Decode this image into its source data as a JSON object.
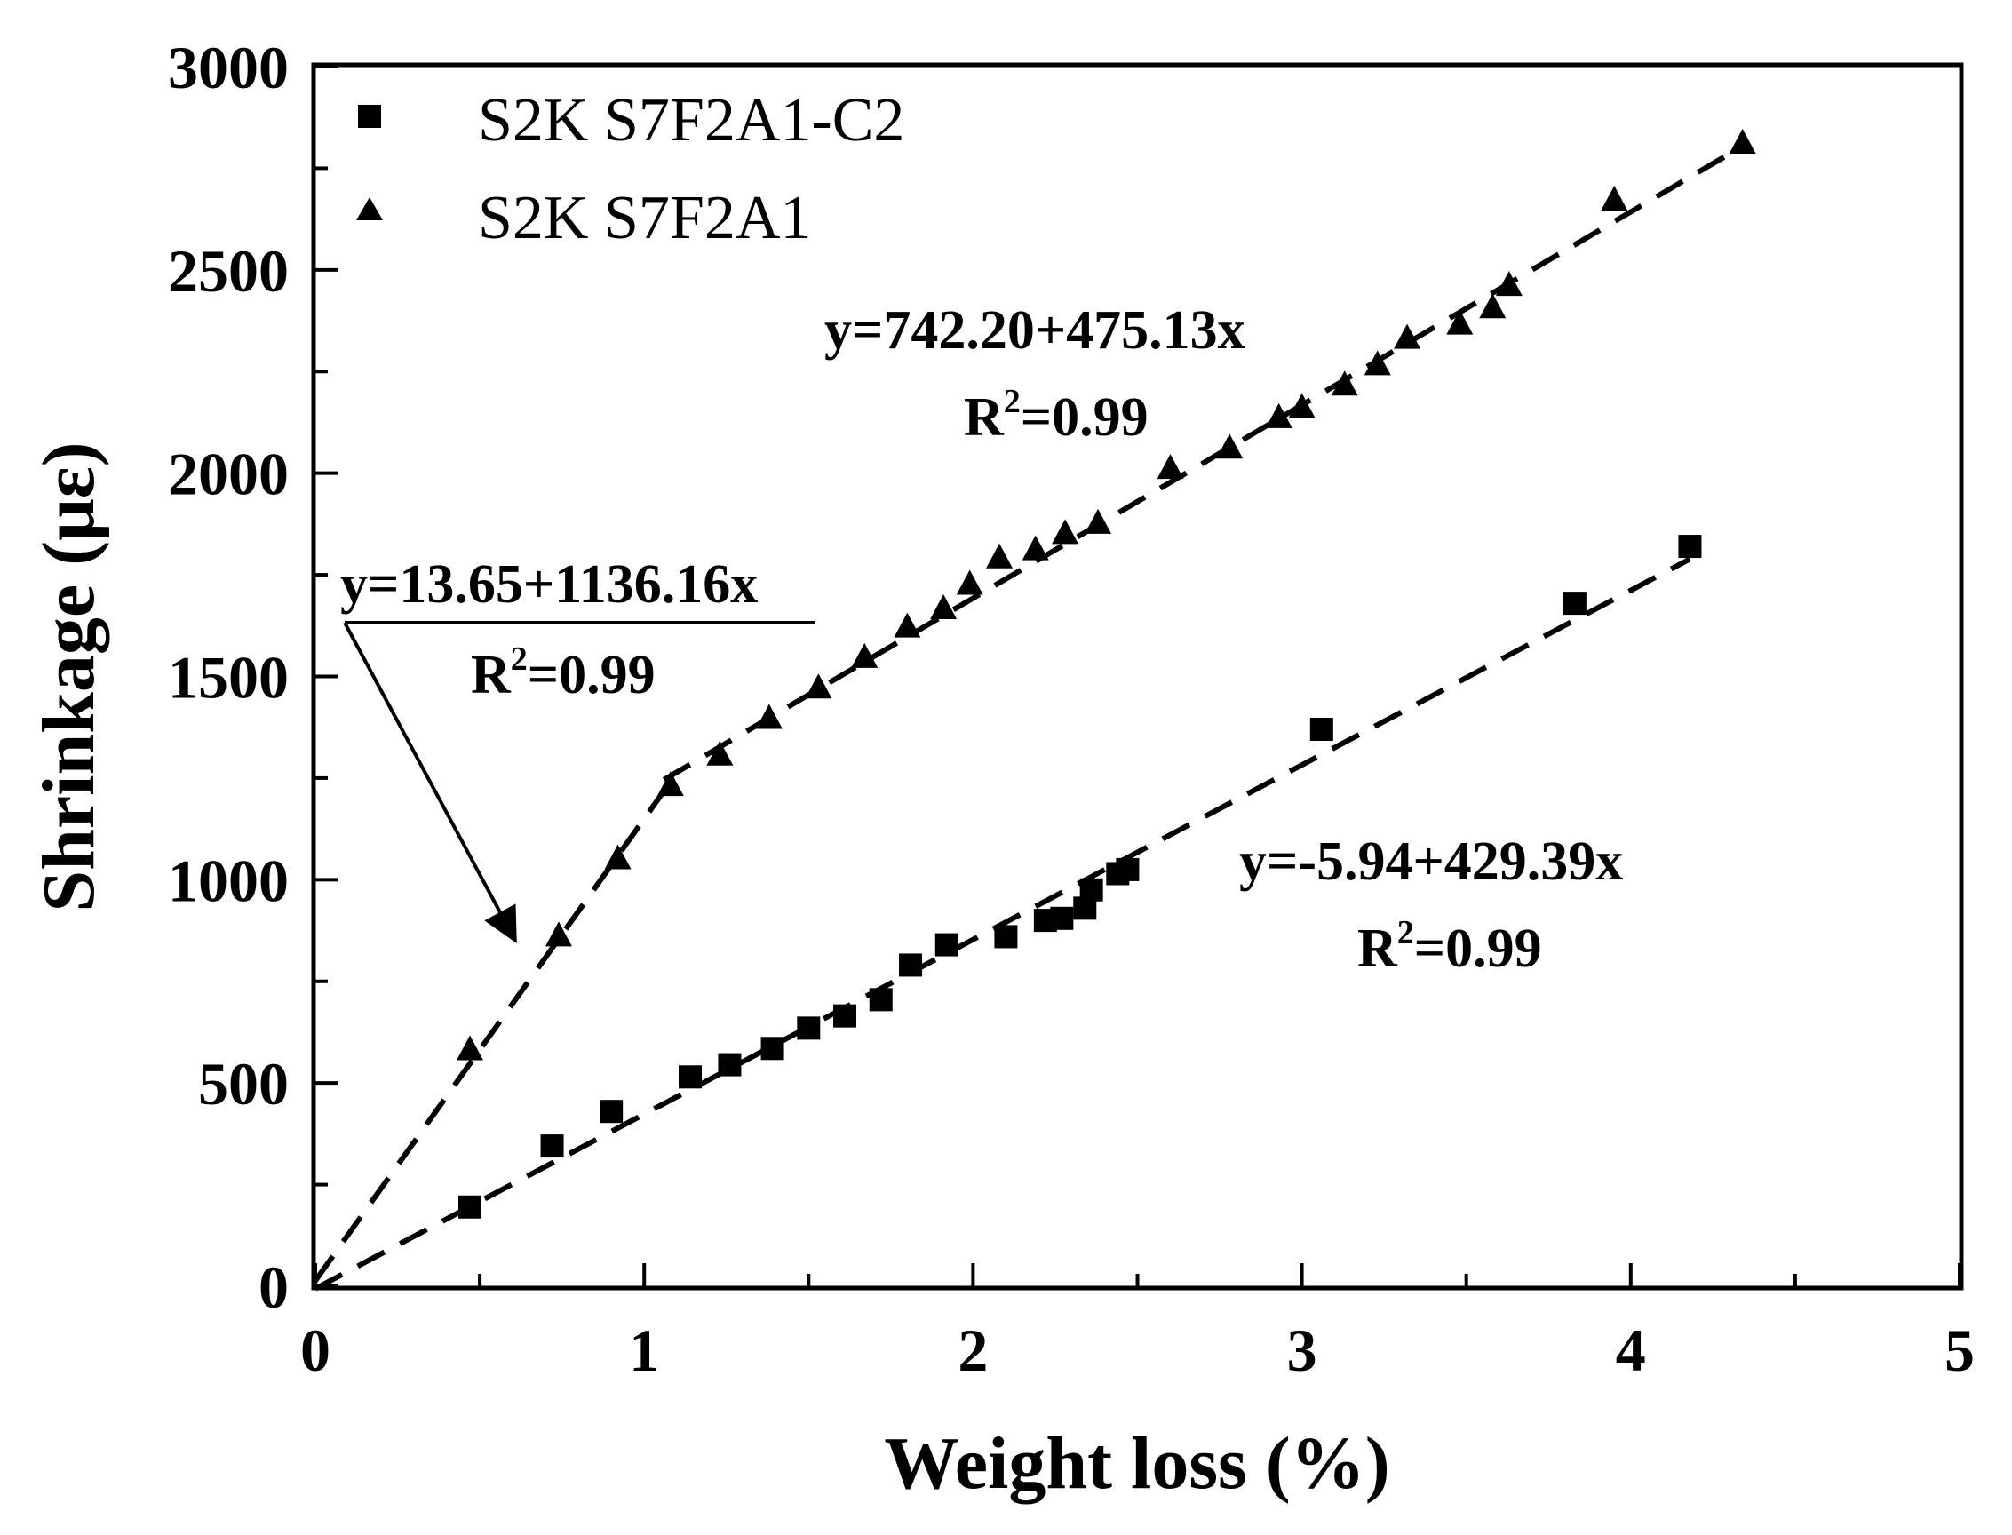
{
  "chart_data": {
    "type": "scatter",
    "xlabel": "Weight loss (%)",
    "ylabel": "Shrinkage (με)",
    "xlim": [
      0,
      5
    ],
    "ylim": [
      0,
      3000
    ],
    "xticks": [
      0,
      1,
      2,
      3,
      4,
      5
    ],
    "yticks": [
      0,
      500,
      1000,
      1500,
      2000,
      2500,
      3000
    ],
    "x_tick_labels": [
      "0",
      "1",
      "2",
      "3",
      "4",
      "5"
    ],
    "y_tick_labels": [
      "0",
      "500",
      "1000",
      "1500",
      "2000",
      "2500",
      "3000"
    ],
    "grid": false,
    "legend_position": "top-left",
    "series": [
      {
        "name": "S2K S7F2A1-C2",
        "marker": "square",
        "points": [
          [
            0.47,
            195
          ],
          [
            0.72,
            345
          ],
          [
            0.9,
            430
          ],
          [
            1.14,
            515
          ],
          [
            1.26,
            545
          ],
          [
            1.39,
            585
          ],
          [
            1.5,
            635
          ],
          [
            1.61,
            665
          ],
          [
            1.72,
            705
          ],
          [
            1.81,
            790
          ],
          [
            1.92,
            840
          ],
          [
            2.1,
            860
          ],
          [
            2.22,
            900
          ],
          [
            2.27,
            905
          ],
          [
            2.34,
            930
          ],
          [
            2.36,
            975
          ],
          [
            2.44,
            1015
          ],
          [
            2.47,
            1025
          ],
          [
            3.06,
            1370
          ],
          [
            3.83,
            1680
          ],
          [
            4.18,
            1820
          ]
        ],
        "fit": {
          "intercept": -5.94,
          "slope": 429.39,
          "x_range": [
            0.0,
            4.18
          ]
        }
      },
      {
        "name": "S2K S7F2A1",
        "marker": "triangle",
        "points": [
          [
            0.47,
            580
          ],
          [
            0.74,
            860
          ],
          [
            0.92,
            1050
          ],
          [
            1.08,
            1230
          ],
          [
            1.23,
            1305
          ],
          [
            1.38,
            1395
          ],
          [
            1.53,
            1470
          ],
          [
            1.67,
            1545
          ],
          [
            1.8,
            1620
          ],
          [
            1.91,
            1665
          ],
          [
            1.99,
            1725
          ],
          [
            2.08,
            1790
          ],
          [
            2.19,
            1810
          ],
          [
            2.28,
            1850
          ],
          [
            2.38,
            1875
          ],
          [
            2.6,
            2010
          ],
          [
            2.78,
            2060
          ],
          [
            2.93,
            2135
          ],
          [
            3.0,
            2160
          ],
          [
            3.13,
            2215
          ],
          [
            3.23,
            2265
          ],
          [
            3.32,
            2330
          ],
          [
            3.48,
            2365
          ],
          [
            3.58,
            2405
          ],
          [
            3.63,
            2460
          ],
          [
            3.95,
            2670
          ],
          [
            4.34,
            2810
          ]
        ],
        "fit_segments": [
          {
            "intercept": 13.65,
            "slope": 1136.16,
            "x_range": [
              0.0,
              1.06
            ]
          },
          {
            "intercept": 742.2,
            "slope": 475.13,
            "x_range": [
              1.06,
              4.34
            ]
          }
        ]
      }
    ],
    "annotations": [
      {
        "id": "fit_c2",
        "equation": "y=-5.94+429.39x",
        "r2_prefix": "R",
        "r2_sup": "2",
        "r2_suffix": "=0.99"
      },
      {
        "id": "fit_a1_upper",
        "equation": "y=742.20+475.13x",
        "r2_prefix": "R",
        "r2_sup": "2",
        "r2_suffix": "=0.99"
      },
      {
        "id": "fit_a1_lower",
        "equation": "y=13.65+1136.16x",
        "r2_prefix": "R",
        "r2_sup": "2",
        "r2_suffix": "=0.99"
      }
    ]
  }
}
